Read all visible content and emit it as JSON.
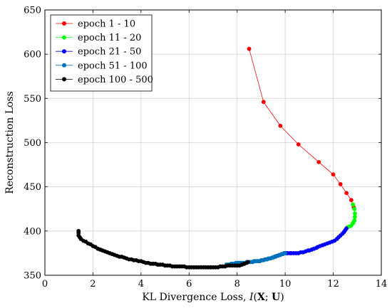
{
  "chart_data": {
    "type": "scatter",
    "xlabel": "KL Divergence Loss, I(X; U)",
    "xlabel_parts": {
      "prefix": "KL Divergence Loss, ",
      "func": "I",
      "open": "(",
      "a": "X",
      "sep": "; ",
      "b": "U",
      "close": ")"
    },
    "ylabel": "Reconstruction Loss",
    "xlim": [
      0,
      14
    ],
    "ylim": [
      350,
      650
    ],
    "xticks": [
      0,
      2,
      4,
      6,
      8,
      10,
      12,
      14
    ],
    "yticks": [
      350,
      400,
      450,
      500,
      550,
      600,
      650
    ],
    "grid": true,
    "legend_position": "top-left",
    "series": [
      {
        "name": "epoch 1 - 10",
        "color": "#ff0000",
        "line_color": "#ff0000",
        "points": [
          [
            8.5,
            606
          ],
          [
            9.1,
            546
          ],
          [
            9.8,
            519
          ],
          [
            10.55,
            498
          ],
          [
            11.4,
            478
          ],
          [
            12.0,
            464
          ],
          [
            12.3,
            453
          ],
          [
            12.55,
            443
          ],
          [
            12.75,
            435
          ],
          [
            12.85,
            427
          ]
        ]
      },
      {
        "name": "epoch 11 - 20",
        "color": "#00ff00",
        "line_color": "#00ff00",
        "points": [
          [
            12.82,
            430
          ],
          [
            12.88,
            425
          ],
          [
            12.9,
            420
          ],
          [
            12.9,
            416
          ],
          [
            12.88,
            412
          ],
          [
            12.84,
            410
          ],
          [
            12.8,
            408
          ],
          [
            12.74,
            406
          ],
          [
            12.66,
            405
          ],
          [
            12.58,
            404
          ]
        ]
      },
      {
        "name": "epoch 21 - 50",
        "color": "#0000ff",
        "line_color": "#0000ff",
        "points": [
          [
            12.55,
            403
          ],
          [
            12.5,
            401
          ],
          [
            12.45,
            399
          ],
          [
            12.38,
            397
          ],
          [
            12.3,
            395
          ],
          [
            12.22,
            393
          ],
          [
            12.15,
            391
          ],
          [
            12.05,
            389
          ],
          [
            11.95,
            388
          ],
          [
            11.85,
            387
          ],
          [
            11.75,
            386
          ],
          [
            11.65,
            385
          ],
          [
            11.55,
            384
          ],
          [
            11.45,
            383
          ],
          [
            11.35,
            382
          ],
          [
            11.3,
            381
          ],
          [
            11.2,
            380
          ],
          [
            11.1,
            379
          ],
          [
            11.0,
            378
          ],
          [
            10.95,
            378
          ],
          [
            10.85,
            377
          ],
          [
            10.75,
            376
          ],
          [
            10.65,
            376
          ],
          [
            10.55,
            375
          ],
          [
            10.45,
            375
          ],
          [
            10.35,
            375
          ],
          [
            10.25,
            375
          ],
          [
            10.2,
            375
          ],
          [
            10.1,
            375
          ],
          [
            10.05,
            375
          ]
        ]
      },
      {
        "name": "epoch 51 - 100",
        "color": "#0072bd",
        "line_color": "#0072bd",
        "points": [
          [
            10.0,
            375
          ],
          [
            9.95,
            375
          ],
          [
            9.9,
            374
          ],
          [
            9.85,
            374
          ],
          [
            9.8,
            373
          ],
          [
            9.75,
            373
          ],
          [
            9.7,
            372
          ],
          [
            9.65,
            372
          ],
          [
            9.6,
            371
          ],
          [
            9.55,
            371
          ],
          [
            9.5,
            370
          ],
          [
            9.45,
            370
          ],
          [
            9.4,
            369
          ],
          [
            9.35,
            369
          ],
          [
            9.3,
            369
          ],
          [
            9.25,
            368
          ],
          [
            9.2,
            368
          ],
          [
            9.15,
            368
          ],
          [
            9.1,
            367
          ],
          [
            9.05,
            367
          ],
          [
            9.0,
            367
          ],
          [
            8.95,
            366
          ],
          [
            8.9,
            366
          ],
          [
            8.85,
            366
          ],
          [
            8.8,
            366
          ],
          [
            8.75,
            366
          ],
          [
            8.7,
            366
          ],
          [
            8.65,
            365
          ],
          [
            8.6,
            365
          ],
          [
            8.55,
            365
          ],
          [
            8.5,
            365
          ],
          [
            8.45,
            365
          ],
          [
            8.4,
            365
          ],
          [
            8.35,
            364
          ],
          [
            8.3,
            364
          ],
          [
            8.25,
            364
          ],
          [
            8.2,
            364
          ],
          [
            8.15,
            364
          ],
          [
            8.1,
            364
          ],
          [
            8.05,
            364
          ],
          [
            8.0,
            364
          ],
          [
            7.95,
            364
          ],
          [
            7.9,
            363
          ],
          [
            7.85,
            363
          ],
          [
            7.8,
            363
          ],
          [
            7.75,
            363
          ],
          [
            7.7,
            362
          ],
          [
            7.65,
            362
          ],
          [
            7.6,
            362
          ],
          [
            7.55,
            362
          ]
        ]
      },
      {
        "name": "epoch 100 - 500",
        "color": "#000000",
        "line_color": "#000000",
        "points": [
          [
            8.45,
            365
          ],
          [
            8.4,
            364
          ],
          [
            8.3,
            363
          ],
          [
            8.2,
            362
          ],
          [
            8.1,
            361
          ],
          [
            8.0,
            361
          ],
          [
            7.9,
            361
          ],
          [
            7.8,
            361
          ],
          [
            7.7,
            361
          ],
          [
            7.6,
            361
          ],
          [
            7.5,
            360
          ],
          [
            7.4,
            360
          ],
          [
            7.3,
            360
          ],
          [
            7.2,
            359
          ],
          [
            7.1,
            359
          ],
          [
            7.0,
            359
          ],
          [
            6.9,
            359
          ],
          [
            6.8,
            359
          ],
          [
            6.7,
            359
          ],
          [
            6.6,
            359
          ],
          [
            6.5,
            359
          ],
          [
            6.4,
            359
          ],
          [
            6.3,
            359
          ],
          [
            6.2,
            359
          ],
          [
            6.1,
            359
          ],
          [
            6.0,
            359
          ],
          [
            5.9,
            359
          ],
          [
            5.8,
            360
          ],
          [
            5.7,
            360
          ],
          [
            5.6,
            360
          ],
          [
            5.5,
            360
          ],
          [
            5.4,
            360
          ],
          [
            5.3,
            360
          ],
          [
            5.2,
            361
          ],
          [
            5.1,
            361
          ],
          [
            5.0,
            361
          ],
          [
            4.9,
            362
          ],
          [
            4.8,
            362
          ],
          [
            4.7,
            362
          ],
          [
            4.6,
            363
          ],
          [
            4.5,
            363
          ],
          [
            4.4,
            363
          ],
          [
            4.3,
            364
          ],
          [
            4.2,
            364
          ],
          [
            4.1,
            365
          ],
          [
            4.0,
            366
          ],
          [
            3.9,
            366
          ],
          [
            3.8,
            367
          ],
          [
            3.7,
            367
          ],
          [
            3.6,
            368
          ],
          [
            3.5,
            368
          ],
          [
            3.4,
            369
          ],
          [
            3.3,
            370
          ],
          [
            3.2,
            371
          ],
          [
            3.1,
            371
          ],
          [
            3.0,
            372
          ],
          [
            2.9,
            373
          ],
          [
            2.8,
            374
          ],
          [
            2.7,
            375
          ],
          [
            2.6,
            376
          ],
          [
            2.5,
            377
          ],
          [
            2.4,
            378
          ],
          [
            2.3,
            379
          ],
          [
            2.2,
            380
          ],
          [
            2.1,
            382
          ],
          [
            2.0,
            383
          ],
          [
            1.9,
            385
          ],
          [
            1.8,
            386
          ],
          [
            1.7,
            388
          ],
          [
            1.6,
            389
          ],
          [
            1.5,
            391
          ],
          [
            1.45,
            393
          ],
          [
            1.4,
            395
          ],
          [
            1.4,
            398
          ],
          [
            1.4,
            400
          ]
        ]
      }
    ]
  }
}
